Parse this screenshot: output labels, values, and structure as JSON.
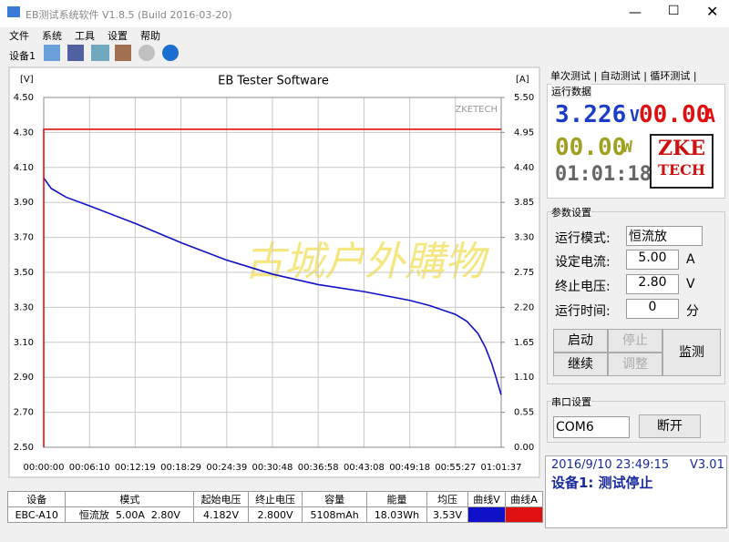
{
  "window": {
    "title": "EB测试系统软件 V1.8.5 (Build 2016-03-20)"
  },
  "menu": [
    "文件",
    "系统",
    "工具",
    "设置",
    "帮助"
  ],
  "toolbar": {
    "device_tab": "设备1"
  },
  "chart_data": {
    "type": "line",
    "title": "EB Tester Software",
    "y_label": "[V]",
    "y2_label": "[A]",
    "brand": "ZKETECH",
    "watermark": "古城户外購物",
    "x": [
      "00:00:00",
      "00:01:00",
      "00:03:00",
      "00:06:10",
      "00:12:19",
      "00:18:29",
      "00:24:39",
      "00:30:48",
      "00:36:58",
      "00:43:08",
      "00:49:18",
      "00:52:00",
      "00:55:27",
      "00:57:00",
      "00:58:30",
      "00:59:30",
      "01:00:20",
      "01:00:55",
      "01:01:20",
      "01:01:37"
    ],
    "xlim": [
      "00:00:00",
      "01:01:37"
    ],
    "xticks": [
      "00:00:00",
      "00:06:10",
      "00:12:19",
      "00:18:29",
      "00:24:39",
      "00:30:48",
      "00:36:58",
      "00:43:08",
      "00:49:18",
      "00:55:27",
      "01:01:37"
    ],
    "ylim": [
      2.5,
      4.5
    ],
    "yticks": [
      {
        "value": 2.5,
        "label": "2.50"
      },
      {
        "value": 2.7,
        "label": "2.70"
      },
      {
        "value": 2.9,
        "label": "2.90"
      },
      {
        "value": 3.1,
        "label": "3.10"
      },
      {
        "value": 3.3,
        "label": "3.30"
      },
      {
        "value": 3.5,
        "label": "3.50"
      },
      {
        "value": 3.7,
        "label": "3.70"
      },
      {
        "value": 3.9,
        "label": "3.90"
      },
      {
        "value": 4.1,
        "label": "4.10"
      },
      {
        "value": 4.3,
        "label": "4.30"
      },
      {
        "value": 4.5,
        "label": "4.50"
      }
    ],
    "y2lim": [
      0,
      5.5
    ],
    "y2ticks": [
      {
        "value": 0,
        "label": "0.00"
      },
      0.55,
      {
        "value": 1.1,
        "label": "1.10"
      },
      1.65,
      {
        "value": 2.2,
        "label": "2.20"
      },
      2.75,
      {
        "value": 3.3,
        "label": "3.30"
      },
      3.85,
      {
        "value": 4.4,
        "label": "4.40"
      },
      4.95,
      {
        "value": 5.5,
        "label": "5.50"
      }
    ],
    "grid": true,
    "series": [
      {
        "name": "曲线V",
        "color": "#1010c8",
        "values": [
          4.04,
          3.98,
          3.93,
          3.88,
          3.78,
          3.67,
          3.57,
          3.49,
          3.43,
          3.39,
          3.34,
          3.31,
          3.26,
          3.22,
          3.15,
          3.07,
          2.98,
          2.9,
          2.84,
          2.8
        ]
      },
      {
        "name": "曲线A",
        "color": "#e01010",
        "axis": "y2",
        "x": [
          "00:00:00",
          "00:00:00",
          "01:01:37"
        ],
        "values": [
          0,
          5.0,
          5.0
        ]
      }
    ]
  },
  "table": {
    "headers": [
      "设备",
      "模式",
      "起始电压",
      "终止电压",
      "容量",
      "能量",
      "均压",
      "曲线V",
      "曲线A"
    ],
    "rows": [
      [
        "EBC-A10",
        "恒流放  5.00A  2.80V",
        "4.182V",
        "2.800V",
        "5108mAh",
        "18.03Wh",
        "3.53V"
      ]
    ]
  },
  "panel": {
    "tabs": [
      "单次测试",
      "自动测试",
      "循环测试"
    ],
    "run_data": {
      "title": "运行数据",
      "voltage": "3.226",
      "voltage_unit": "V",
      "current": "00.00",
      "current_unit": "A",
      "power": "00.00",
      "power_unit": "W",
      "time": "01:01:18",
      "logo_top": "ZKE",
      "logo_bottom": "TECH"
    },
    "params": {
      "title": "参数设置",
      "mode_label": "运行模式:",
      "mode": "恒流放",
      "current_label": "设定电流:",
      "current": "5.00",
      "current_unit": "A",
      "voltage_label": "终止电压:",
      "voltage": "2.80",
      "voltage_unit": "V",
      "time_label": "运行时间:",
      "time": "0",
      "time_unit": "分",
      "buttons": [
        "启动",
        "停止",
        "继续",
        "调整",
        "监测"
      ]
    },
    "serial": {
      "title": "串口设置",
      "port": "COM6",
      "button": "断开"
    },
    "status": {
      "datetime": "2016/9/10 23:49:15",
      "version": "V3.01",
      "message": "设备1: 测试停止"
    }
  }
}
